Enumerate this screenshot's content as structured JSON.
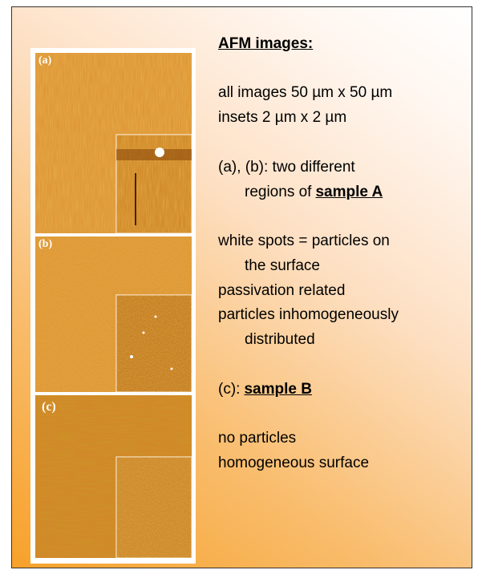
{
  "heading": "AFM images:",
  "image_labels": [
    "(a)",
    "(b)",
    "(c)"
  ],
  "text_lines": [
    "all images 50 µm x 50 µm",
    "insets 2 µm x 2 µm",
    "(a), (b): two different",
    "regions of",
    "sample A",
    "white spots = particles on",
    "the surface",
    "passivation related",
    "particles inhomogeneously",
    "distributed",
    "(c):",
    "sample B",
    "no particles",
    "homogeneous surface"
  ]
}
